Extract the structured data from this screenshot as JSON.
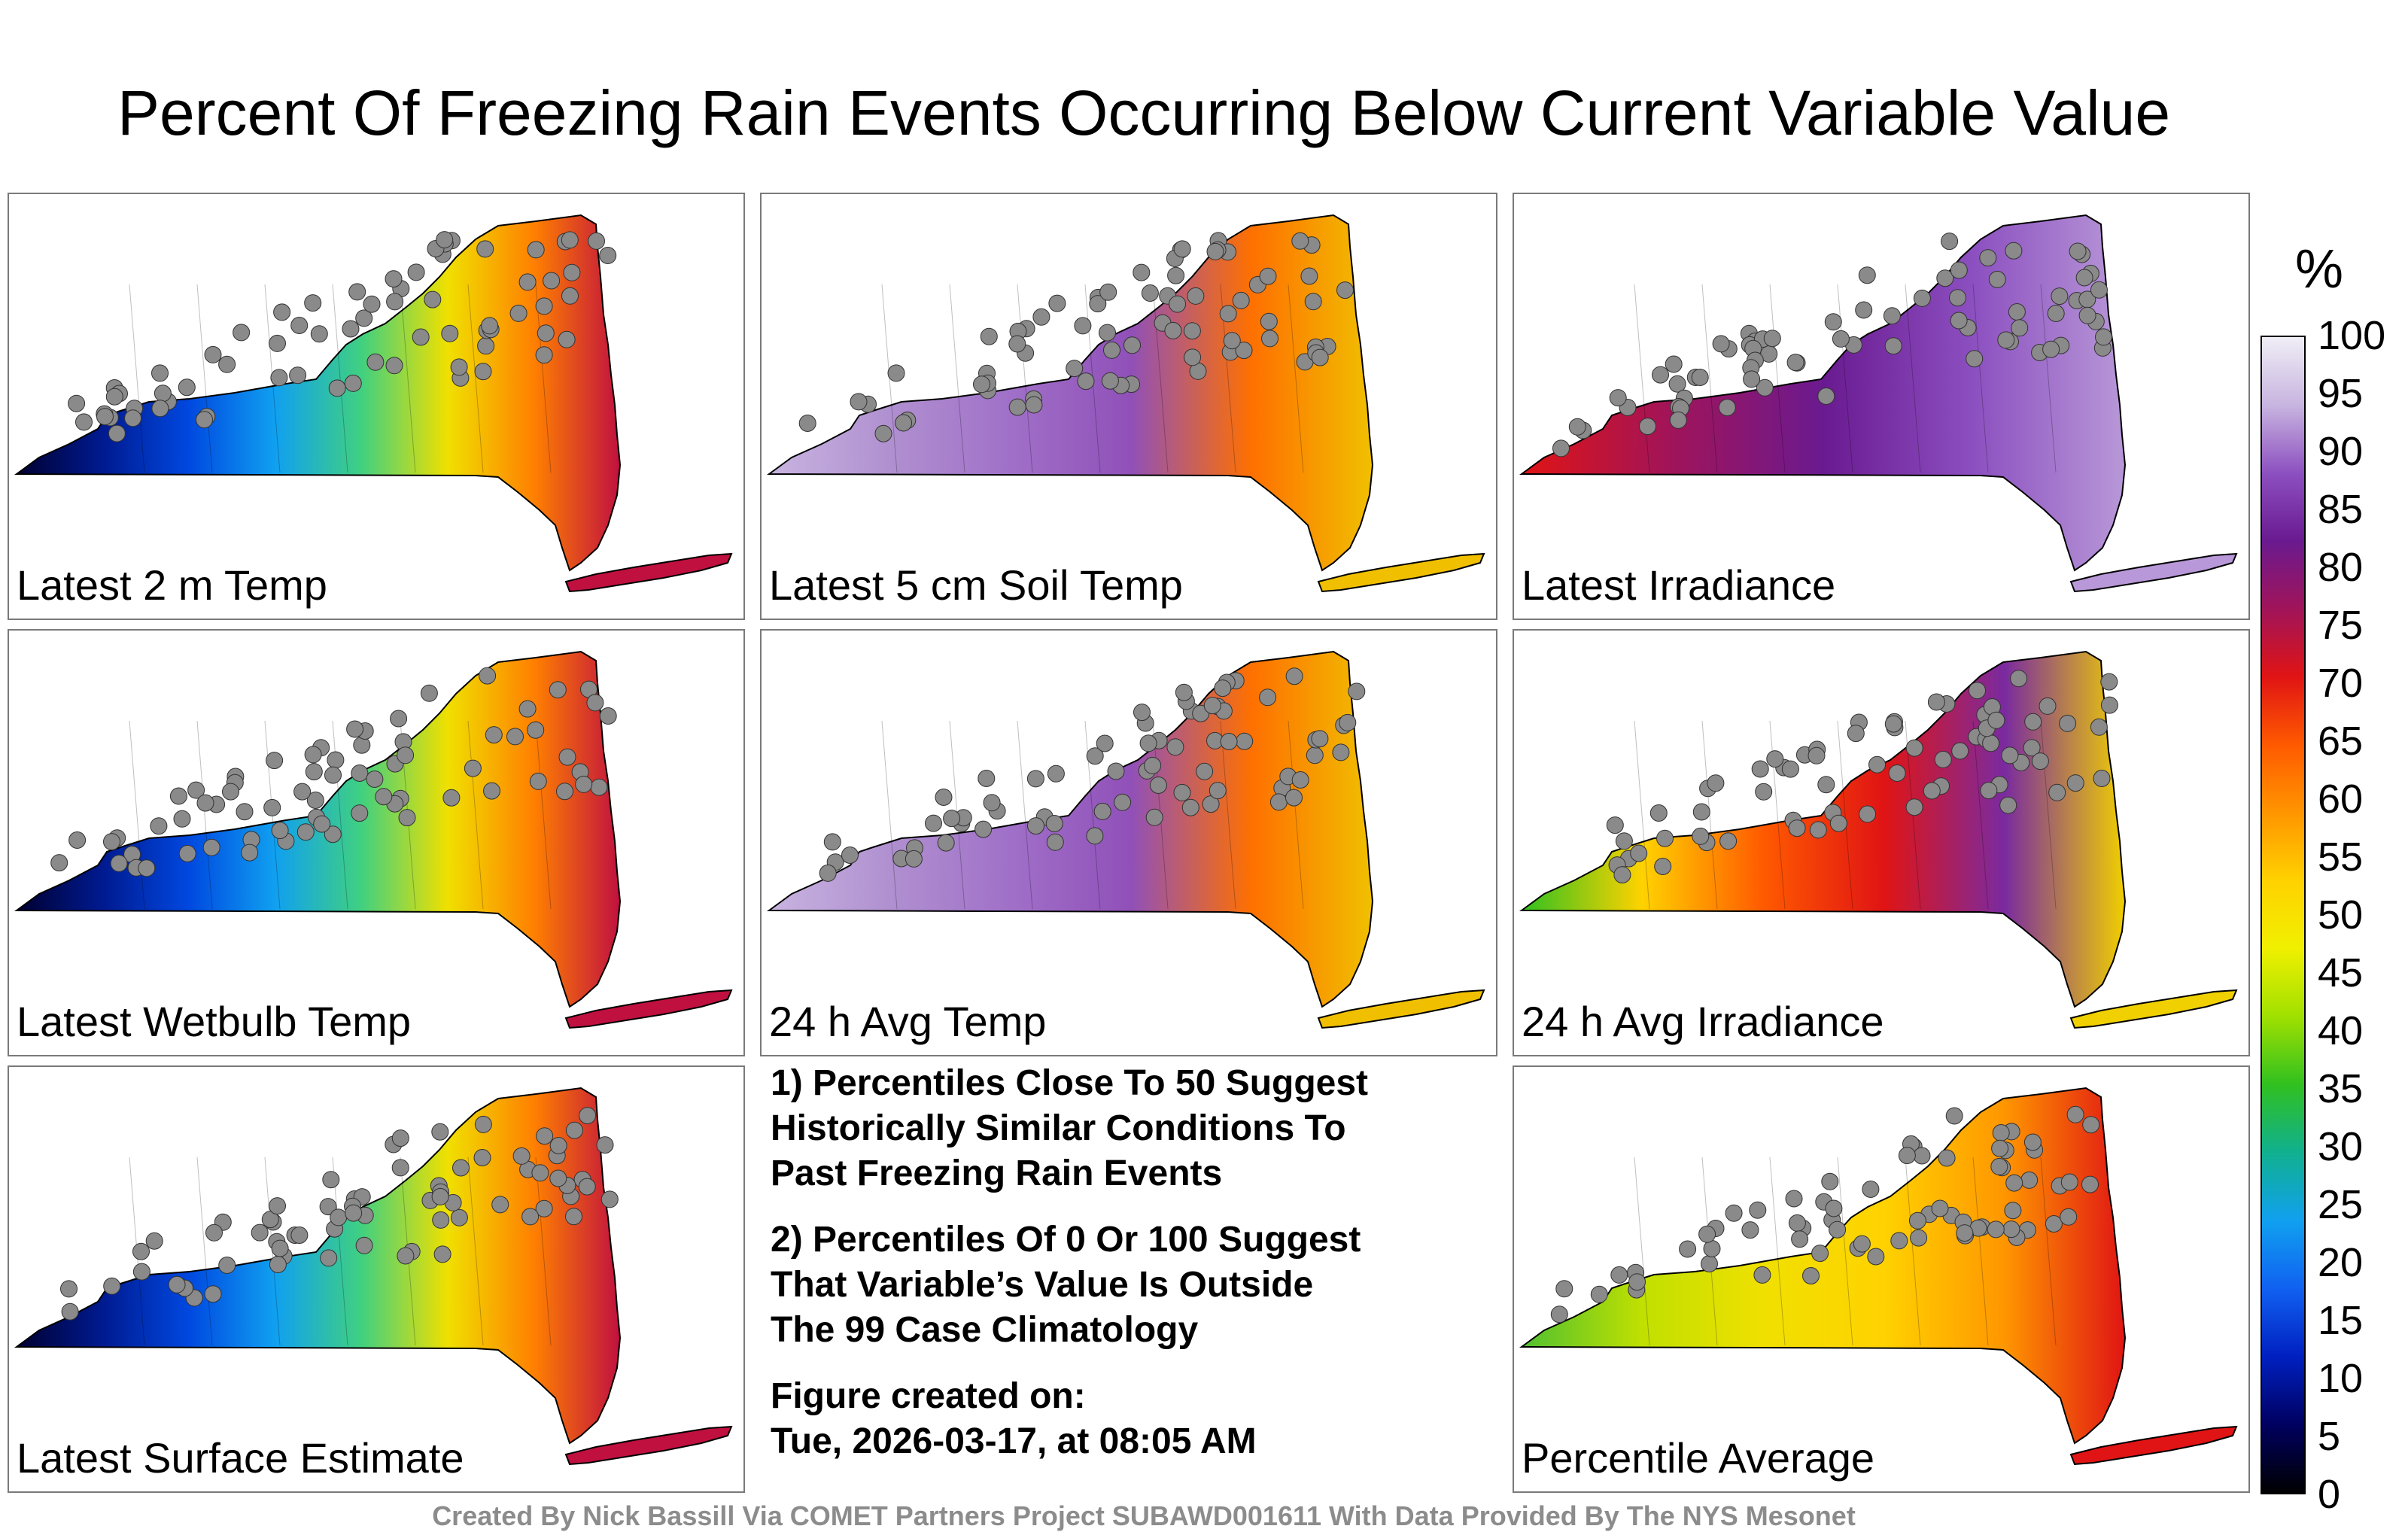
{
  "title": "Percent Of Freezing Rain Events Occurring Below Current Variable Value",
  "panels": [
    {
      "label": "Latest 2 m Temp",
      "scheme": "low"
    },
    {
      "label": "Latest 5 cm Soil Temp",
      "scheme": "high"
    },
    {
      "label": "Latest Irradiance",
      "scheme": "mid"
    },
    {
      "label": "Latest Wetbulb Temp",
      "scheme": "low"
    },
    {
      "label": "24 h Avg Temp",
      "scheme": "high"
    },
    {
      "label": "24 h Avg Irradiance",
      "scheme": "mixed"
    },
    {
      "label": "Latest Surface Estimate",
      "scheme": "low"
    },
    {
      "label": "Percentile Average",
      "scheme": "avg"
    }
  ],
  "notes": {
    "note1": "1) Percentiles Close To 50 Suggest\nHistorically Similar Conditions To\nPast Freezing Rain Events",
    "note2": "2) Percentiles Of 0 Or 100 Suggest\nThat Variable’s Value Is Outside\nThe 99 Case Climatology",
    "created": "Figure created on:\nTue, 2026-03-17, at 08:05 AM"
  },
  "colorbar": {
    "unit": "%",
    "ticks": [
      "100",
      "95",
      "90",
      "85",
      "80",
      "75",
      "70",
      "65",
      "60",
      "55",
      "50",
      "45",
      "40",
      "35",
      "30",
      "25",
      "20",
      "15",
      "10",
      "5",
      "0"
    ],
    "stops": [
      "#f0eef6",
      "#c8b4e0",
      "#8c50c0",
      "#6a1a90",
      "#a0145a",
      "#e01414",
      "#ff5a00",
      "#ff9600",
      "#ffd200",
      "#f0f000",
      "#a0e000",
      "#30c020",
      "#10b090",
      "#10a0f0",
      "#1060f0",
      "#0020c0",
      "#000060",
      "#000000"
    ]
  },
  "credit": "Created By Nick Bassill Via COMET Partners Project SUBAWD001611 With Data Provided By The NYS Mesonet"
}
